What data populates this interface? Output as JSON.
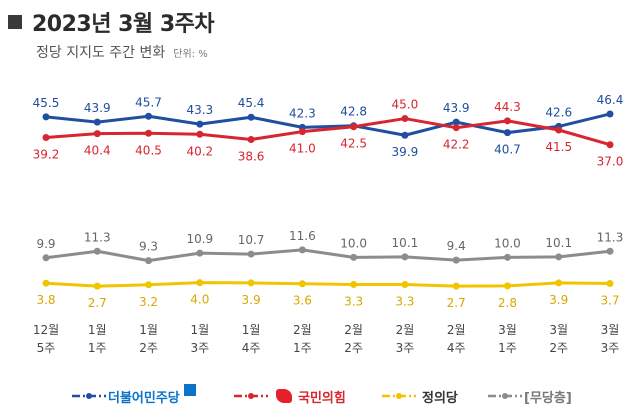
{
  "header": {
    "title": "2023년 3월 3주차",
    "subtitle": "정당 지지도 주간 변화",
    "unit": "단위: %"
  },
  "legend": {
    "democratic": "더불어민주당",
    "ppp": "국민의힘",
    "justice": "정의당",
    "independent": "[무당층]"
  },
  "colors": {
    "democratic": "#1f4fa0",
    "ppp": "#d8262f",
    "justice": "#f1c400",
    "independent": "#8c8c8c"
  },
  "chart_data": {
    "type": "line",
    "categories": [
      [
        "12월",
        "5주"
      ],
      [
        "1월",
        "1주"
      ],
      [
        "1월",
        "2주"
      ],
      [
        "1월",
        "3주"
      ],
      [
        "1월",
        "4주"
      ],
      [
        "2월",
        "1주"
      ],
      [
        "2월",
        "2주"
      ],
      [
        "2월",
        "3주"
      ],
      [
        "2월",
        "4주"
      ],
      [
        "3월",
        "1주"
      ],
      [
        "3월",
        "2주"
      ],
      [
        "3월",
        "3주"
      ]
    ],
    "series": [
      {
        "name": "더불어민주당",
        "values": [
          45.5,
          43.9,
          45.7,
          43.3,
          45.4,
          42.3,
          42.8,
          39.9,
          43.9,
          40.7,
          42.6,
          46.4
        ]
      },
      {
        "name": "국민의힘",
        "values": [
          39.2,
          40.4,
          40.5,
          40.2,
          38.6,
          41.0,
          42.5,
          45.0,
          42.2,
          44.3,
          41.5,
          37.0
        ]
      },
      {
        "name": "[무당층]",
        "values": [
          9.9,
          11.3,
          9.3,
          10.9,
          10.7,
          11.6,
          10.0,
          10.1,
          9.4,
          10.0,
          10.1,
          11.3
        ]
      },
      {
        "name": "정의당",
        "values": [
          3.8,
          2.7,
          3.2,
          4.0,
          3.9,
          3.6,
          3.3,
          3.3,
          2.7,
          2.8,
          3.9,
          3.7
        ]
      }
    ],
    "label_positions": {
      "더불어민주당": [
        "above",
        "above",
        "above",
        "above",
        "above",
        "above",
        "above",
        "below",
        "above",
        "below",
        "above",
        "above"
      ],
      "국민의힘": [
        "below",
        "below",
        "below",
        "below",
        "below",
        "below",
        "below",
        "above",
        "below",
        "above",
        "below",
        "below"
      ],
      "[무당층]": [
        "above",
        "above",
        "above",
        "above",
        "above",
        "above",
        "above",
        "above",
        "above",
        "above",
        "above",
        "above"
      ],
      "정의당": [
        "below",
        "below",
        "below",
        "below",
        "below",
        "below",
        "below",
        "below",
        "below",
        "below",
        "below",
        "below"
      ]
    },
    "grid": false,
    "legend_position": "bottom"
  }
}
